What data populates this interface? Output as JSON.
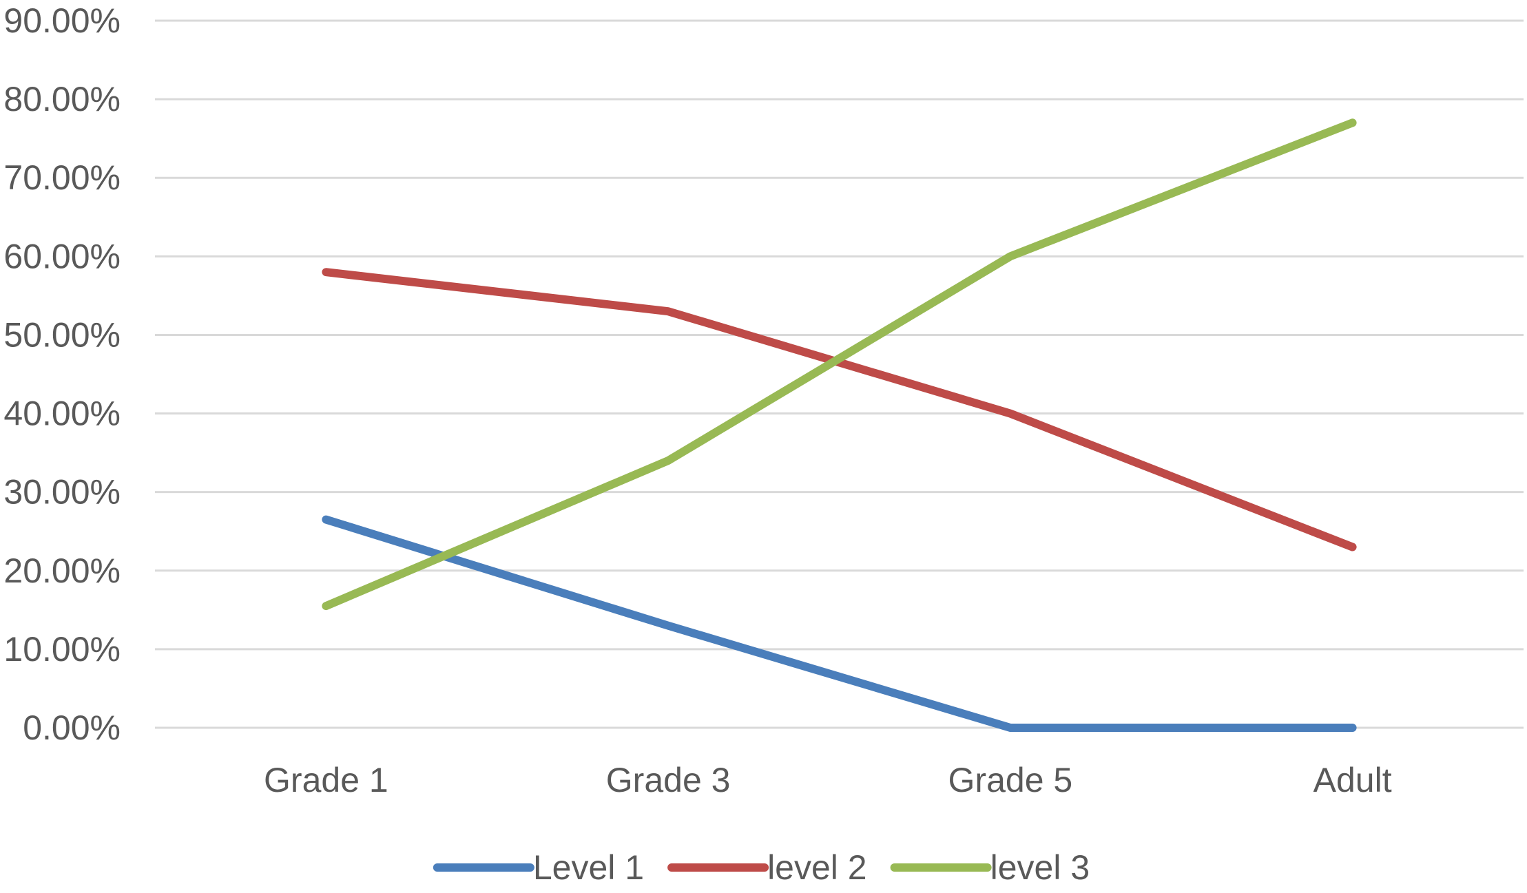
{
  "chart_data": {
    "type": "line",
    "categories": [
      "Grade 1",
      "Grade 3",
      "Grade 5",
      "Adult"
    ],
    "series": [
      {
        "name": "Level 1",
        "values": [
          0.265,
          0.13,
          0.0,
          0.0
        ],
        "color": "#4A7EBB"
      },
      {
        "name": "level 2",
        "values": [
          0.58,
          0.53,
          0.4,
          0.23
        ],
        "color": "#BE4B48"
      },
      {
        "name": "level 3",
        "values": [
          0.155,
          0.34,
          0.6,
          0.77
        ],
        "color": "#98B954"
      }
    ],
    "ylim": [
      0,
      0.9
    ],
    "y_ticks": [
      "0.00%",
      "10.00%",
      "20.00%",
      "30.00%",
      "40.00%",
      "50.00%",
      "60.00%",
      "70.00%",
      "80.00%",
      "90.00%"
    ],
    "grid": true,
    "gridline_color": "#D9D9D9",
    "legend_position": "bottom"
  }
}
